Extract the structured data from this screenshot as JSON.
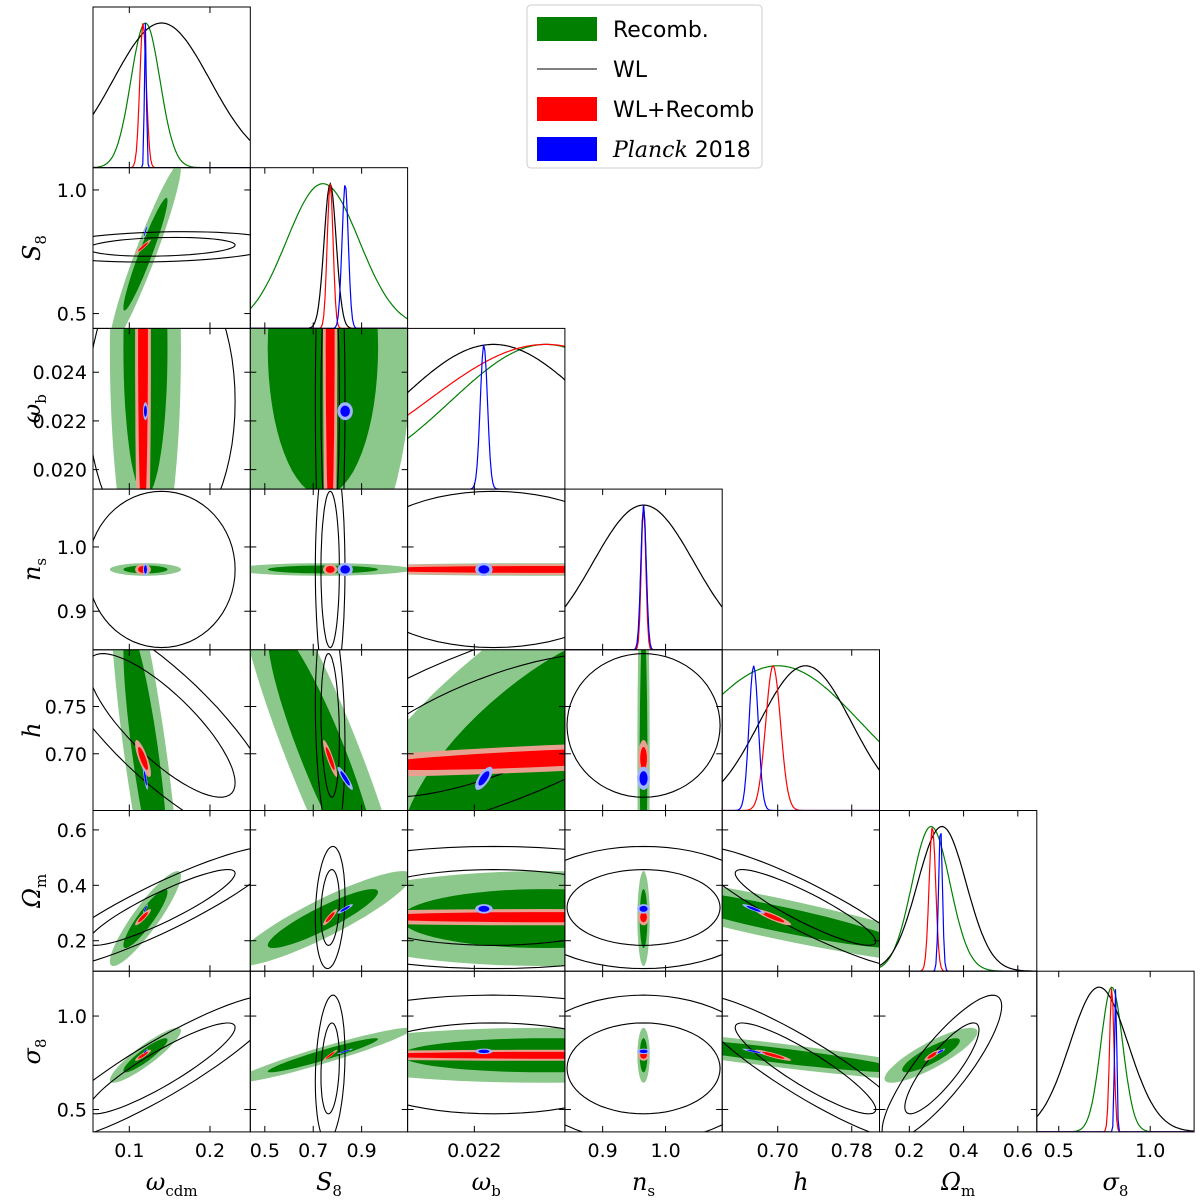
{
  "chart_data": {
    "type": "corner",
    "title": "",
    "parameters": [
      {
        "key": "wcdm",
        "label_base": "ω",
        "label_sub": "cdm",
        "range": [
          0.055,
          0.25
        ],
        "ticks": [
          0.1,
          0.2
        ],
        "tick_labels": [
          "0.1",
          "0.2"
        ]
      },
      {
        "key": "S8",
        "label_base": "S",
        "label_sub": "8",
        "range": [
          0.44,
          1.09
        ],
        "ticks": [
          0.5,
          0.7,
          0.9
        ],
        "tick_labels": [
          "0.5",
          "0.7",
          "0.9"
        ],
        "y_ticks": [
          0.5,
          1.0
        ],
        "y_tick_labels": [
          "0.5",
          "1.0"
        ]
      },
      {
        "key": "wb",
        "label_base": "ω",
        "label_sub": "b",
        "range": [
          0.0192,
          0.0258
        ],
        "ticks": [
          0.022
        ],
        "tick_labels": [
          "0.022"
        ],
        "y_ticks": [
          0.02,
          0.022,
          0.024
        ],
        "y_tick_labels": [
          "0.020",
          "0.022",
          "0.024"
        ]
      },
      {
        "key": "ns",
        "label_base": "n",
        "label_sub": "s",
        "range": [
          0.84,
          1.09
        ],
        "ticks": [
          0.9,
          1.0
        ],
        "tick_labels": [
          "0.9",
          "1.0"
        ],
        "y_ticks": [
          0.9,
          1.0
        ],
        "y_tick_labels": [
          "0.9",
          "1.0"
        ]
      },
      {
        "key": "h",
        "label_base": "h",
        "label_sub": "",
        "range": [
          0.64,
          0.81
        ],
        "ticks": [
          0.7,
          0.78
        ],
        "tick_labels": [
          "0.70",
          "0.78"
        ],
        "y_ticks": [
          0.7,
          0.75
        ],
        "y_tick_labels": [
          "0.70",
          "0.75"
        ]
      },
      {
        "key": "Om",
        "label_base": "Ω",
        "label_sub": "m",
        "range": [
          0.09,
          0.67
        ],
        "ticks": [
          0.2,
          0.4,
          0.6
        ],
        "tick_labels": [
          "0.2",
          "0.4",
          "0.6"
        ],
        "y_ticks": [
          0.2,
          0.4,
          0.6
        ],
        "y_tick_labels": [
          "0.2",
          "0.4",
          "0.6"
        ]
      },
      {
        "key": "s8",
        "label_base": "σ",
        "label_sub": "8",
        "range": [
          0.38,
          1.24
        ],
        "ticks": [
          0.5,
          1.0
        ],
        "tick_labels": [
          "0.5",
          "1.0"
        ],
        "y_ticks": [
          0.5,
          1.0
        ],
        "y_tick_labels": [
          "0.5",
          "1.0"
        ]
      }
    ],
    "series": [
      {
        "name": "Recomb.",
        "name_italic": "",
        "style": "filled",
        "color": "#007f00",
        "light_color": "#8cc88c",
        "mean": {
          "wcdm": 0.12,
          "S8": 0.74,
          "wb": 0.025,
          "ns": 0.965,
          "h": 0.7,
          "Om": 0.28,
          "s8": 0.79
        },
        "sigma": {
          "wcdm": 0.018,
          "S8": 0.15,
          "wb": 0.004,
          "ns": 0.004,
          "h": 0.09,
          "Om": 0.07,
          "s8": 0.06
        }
      },
      {
        "name": "WL",
        "name_italic": "",
        "style": "line",
        "color": "#000000",
        "light_color": "#000000",
        "mean": {
          "wcdm": 0.14,
          "S8": 0.77,
          "wb": 0.0228,
          "ns": 0.965,
          "h": 0.73,
          "Om": 0.32,
          "s8": 0.72
        },
        "sigma": {
          "wcdm": 0.06,
          "S8": 0.025,
          "wb": 0.004,
          "ns": 0.08,
          "h": 0.05,
          "Om": 0.09,
          "s8": 0.16
        }
      },
      {
        "name": "WL+Recomb",
        "name_italic": "",
        "style": "filled",
        "color": "#ff0000",
        "light_color": "#e8a090",
        "mean": {
          "wcdm": 0.117,
          "S8": 0.77,
          "wb": 0.025,
          "ns": 0.965,
          "h": 0.695,
          "Om": 0.285,
          "s8": 0.79
        },
        "sigma": {
          "wcdm": 0.004,
          "S8": 0.012,
          "wb": 0.005,
          "ns": 0.0035,
          "h": 0.008,
          "Om": 0.012,
          "s8": 0.012
        }
      },
      {
        "name": "2018",
        "name_italic": "Planck",
        "style": "filled",
        "color": "#0000ff",
        "light_color": "#a0b4ff",
        "mean": {
          "wcdm": 0.12,
          "S8": 0.832,
          "wb": 0.0224,
          "ns": 0.965,
          "h": 0.674,
          "Om": 0.315,
          "s8": 0.811
        },
        "sigma": {
          "wcdm": 0.0012,
          "S8": 0.013,
          "wb": 0.00015,
          "ns": 0.0042,
          "h": 0.005,
          "Om": 0.007,
          "s8": 0.006
        }
      }
    ],
    "legend_placement": "top-right"
  }
}
